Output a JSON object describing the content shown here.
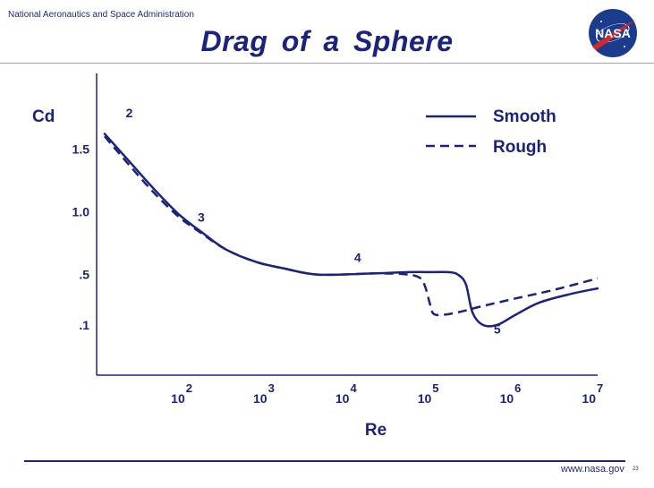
{
  "header": {
    "organization": "National Aeronautics and Space Administration",
    "title": "Drag of a Sphere",
    "logo_text": "NASA"
  },
  "footer": {
    "url": "www.nasa.gov",
    "page_number": "23"
  },
  "colors": {
    "primary": "#1a237e",
    "logo_blue": "#1b3c8c",
    "logo_red": "#d62828"
  },
  "chart_data": {
    "type": "line",
    "title": "Drag of a Sphere",
    "xlabel": "Re",
    "ylabel": "Cd",
    "x_scale": "log",
    "xlim": [
      8,
      10000000
    ],
    "x_ticks": [
      {
        "base": "10",
        "exp": "2",
        "value": 100
      },
      {
        "base": "10",
        "exp": "3",
        "value": 1000
      },
      {
        "base": "10",
        "exp": "4",
        "value": 10000
      },
      {
        "base": "10",
        "exp": "5",
        "value": 100000
      },
      {
        "base": "10",
        "exp": "6",
        "value": 1000000
      },
      {
        "base": "10",
        "exp": "7",
        "value": 10000000
      }
    ],
    "y_ticks": [
      {
        "label": "1.5",
        "value": 1.5
      },
      {
        "label": "1.0",
        "value": 1.0
      },
      {
        "label": ".5",
        "value": 0.5
      },
      {
        "label": ".1",
        "value": 0.1
      }
    ],
    "ylim": [
      -0.3,
      2.1
    ],
    "grid": false,
    "legend_position": "top-right",
    "series": [
      {
        "name": "Smooth",
        "style": "solid",
        "x": [
          10,
          20,
          40,
          80,
          150,
          300,
          700,
          1500,
          4000,
          20000,
          50000,
          100000,
          150000,
          200000,
          250000,
          300000,
          400000,
          600000,
          1000000,
          2000000,
          5000000,
          10000000
        ],
        "y": [
          1.62,
          1.4,
          1.18,
          0.98,
          0.84,
          0.7,
          0.6,
          0.55,
          0.5,
          0.51,
          0.52,
          0.52,
          0.52,
          0.5,
          0.42,
          0.2,
          0.1,
          0.1,
          0.18,
          0.28,
          0.35,
          0.39
        ]
      },
      {
        "name": "Rough",
        "style": "dashed",
        "x": [
          10,
          20,
          40,
          80,
          150,
          300,
          700,
          1500,
          4000,
          20000,
          50000,
          70000,
          80000,
          90000,
          100000,
          130000,
          200000,
          400000,
          1000000,
          3000000,
          10000000
        ],
        "y": [
          1.6,
          1.37,
          1.15,
          0.96,
          0.83,
          0.7,
          0.6,
          0.55,
          0.5,
          0.51,
          0.5,
          0.47,
          0.4,
          0.28,
          0.19,
          0.18,
          0.2,
          0.25,
          0.31,
          0.38,
          0.47
        ]
      }
    ],
    "annotations": [
      {
        "label": "2",
        "x": 20,
        "y": 1.75
      },
      {
        "label": "3",
        "x": 150,
        "y": 0.92
      },
      {
        "label": "4",
        "x": 12000,
        "y": 0.6
      },
      {
        "label": "5",
        "x": 600000,
        "y": 0.03
      }
    ]
  }
}
